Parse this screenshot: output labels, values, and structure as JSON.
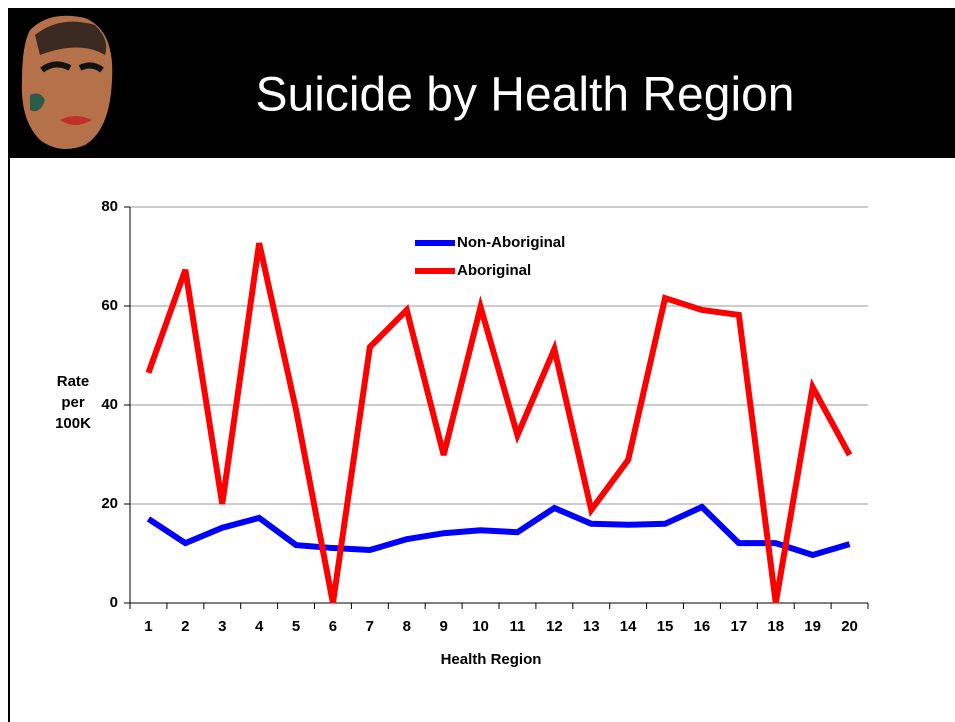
{
  "chart_data": {
    "type": "line",
    "title": "Suicide by Health Region",
    "xlabel": "Health Region",
    "ylabel": [
      "Rate",
      "per",
      "100K"
    ],
    "categories": [
      "1",
      "2",
      "3",
      "4",
      "5",
      "6",
      "7",
      "8",
      "9",
      "10",
      "11",
      "12",
      "13",
      "14",
      "15",
      "16",
      "17",
      "18",
      "19",
      "20"
    ],
    "series": [
      {
        "name": "Non-Aboriginal",
        "color": "#0000ff",
        "values": [
          17.0,
          12.1,
          15.2,
          17.2,
          11.7,
          11.1,
          10.7,
          12.9,
          14.1,
          14.7,
          14.3,
          19.2,
          16.0,
          15.8,
          16.0,
          19.4,
          12.1,
          12.1,
          9.7,
          11.9
        ]
      },
      {
        "name": "Aboriginal",
        "color": "#ff0000",
        "values": [
          46.5,
          67.3,
          20.0,
          72.7,
          39.0,
          0,
          51.7,
          59.2,
          29.9,
          59.8,
          33.9,
          51.3,
          18.8,
          28.9,
          61.6,
          59.2,
          58.2,
          0,
          43.6,
          29.9
        ]
      }
    ],
    "ylim": [
      0,
      80
    ],
    "yticks": [
      0,
      20,
      40,
      60,
      80
    ],
    "grid": true,
    "legend": "top"
  }
}
